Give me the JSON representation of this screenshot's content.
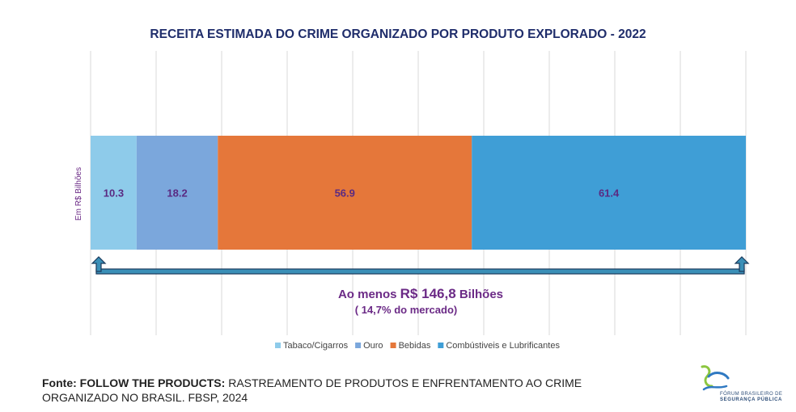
{
  "chart_data": {
    "type": "bar",
    "orientation": "horizontal-stacked",
    "title": "RECEITA ESTIMADA DO CRIME ORGANIZADO POR PRODUTO EXPLORADO - 2022",
    "ylabel": "Em R$ Bilhões",
    "xlim": [
      0,
      146.8
    ],
    "grid": true,
    "legend_position": "bottom",
    "series": [
      {
        "name": "Tabaco/Cigarros",
        "value": 10.3,
        "label": "10.3",
        "color": "#8ecbea"
      },
      {
        "name": "Ouro",
        "value": 18.2,
        "label": "18.2",
        "color": "#7ba7dc"
      },
      {
        "name": "Bebidas",
        "value": 56.9,
        "label": "56.9",
        "color": "#e5773a"
      },
      {
        "name": "Combústiveis e Lubrificantes",
        "value": 61.4,
        "label": "61.4",
        "color": "#3f9ed6"
      }
    ],
    "annotation": {
      "prefix": "Ao menos ",
      "amount": "R$ 146,8",
      "suffix": " Bilhões",
      "subtext": "( 14,7% do mercado)",
      "color": "#6b2a86"
    },
    "label_color": "#5a2a82",
    "title_color": "#1f2d6b"
  },
  "footer": {
    "source_bold": "Fonte: FOLLOW THE PRODUCTS:",
    "source_rest": " RASTREAMENTO DE PRODUTOS E ENFRENTAMENTO AO CRIME ORGANIZADO NO BRASIL. FBSP, 2024"
  },
  "logo": {
    "line1": "FÓRUM BRASILEIRO DE",
    "line2": "SEGURANÇA PÚBLICA",
    "colors": [
      "#8cc63f",
      "#2f79c2"
    ]
  }
}
